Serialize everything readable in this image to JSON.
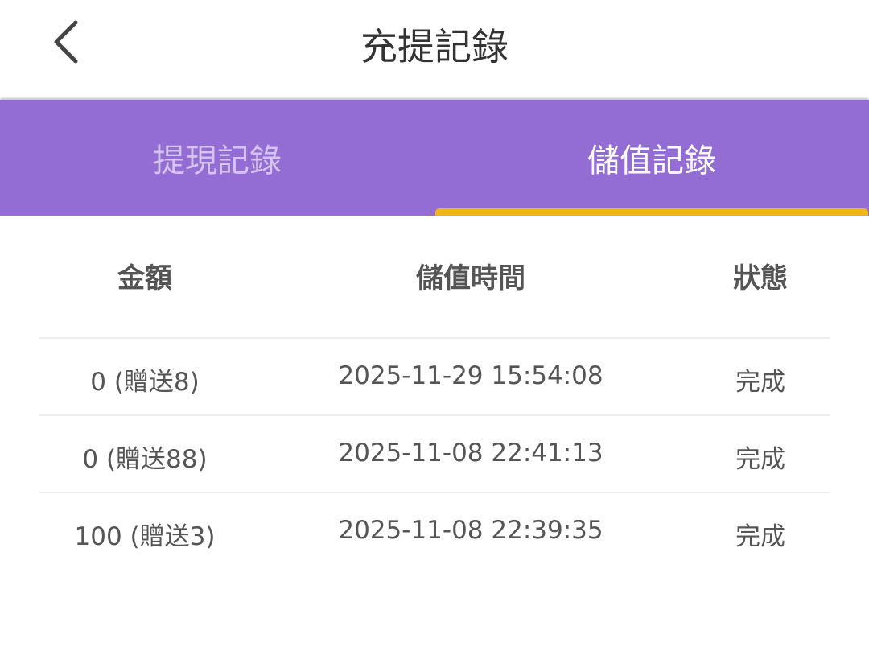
{
  "header": {
    "title": "充提記錄",
    "back_icon": "chevron-left-icon"
  },
  "tabs": [
    {
      "label": "提現記錄",
      "active": false
    },
    {
      "label": "儲值記錄",
      "active": true
    }
  ],
  "colors": {
    "tab_bar": "#936dd4",
    "indicator": "#f0b414"
  },
  "table": {
    "columns": [
      "金額",
      "儲值時間",
      "狀態"
    ],
    "rows": [
      [
        "0 (贈送8)",
        "2025-11-29 15:54:08",
        "完成"
      ],
      [
        "0 (贈送88)",
        "2025-11-08 22:41:13",
        "完成"
      ],
      [
        "100 (贈送3)",
        "2025-11-08 22:39:35",
        "完成"
      ]
    ]
  }
}
